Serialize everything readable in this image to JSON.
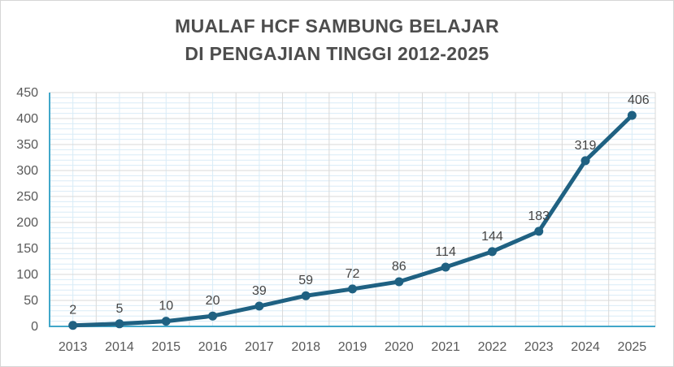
{
  "title": {
    "line1": "MUALAF HCF SAMBUNG BELAJAR",
    "line2": "DI PENGAJIAN TINGGI 2012-2025"
  },
  "chart_data": {
    "type": "line",
    "title": "MUALAF HCF SAMBUNG BELAJAR DI PENGAJIAN TINGGI 2012-2025",
    "categories": [
      "2013",
      "2014",
      "2015",
      "2016",
      "2017",
      "2018",
      "2019",
      "2020",
      "2021",
      "2022",
      "2023",
      "2024",
      "2025"
    ],
    "values": [
      2,
      5,
      10,
      20,
      39,
      59,
      72,
      86,
      114,
      144,
      183,
      319,
      406
    ],
    "data_labels_shown": true,
    "xlabel": "",
    "ylabel": "",
    "ylim": [
      0,
      450
    ],
    "y_ticks": [
      0,
      50,
      100,
      150,
      200,
      250,
      300,
      350,
      400,
      450
    ],
    "y_minor_step": 10,
    "grid": {
      "horizontal_major": true,
      "horizontal_minor": true,
      "vertical_major": true,
      "vertical_minor": true
    },
    "legend": "none"
  },
  "colors": {
    "line": "#1f6182",
    "marker": "#1f6182",
    "axis": "#41a7c9",
    "grid_major": "#d9d9d9",
    "grid_minor": "#d9ecf7",
    "tick_label": "#595959",
    "data_label": "#444444",
    "title": "#4d4d4d",
    "frame_border": "#d6d6d6",
    "background": "#ffffff"
  }
}
